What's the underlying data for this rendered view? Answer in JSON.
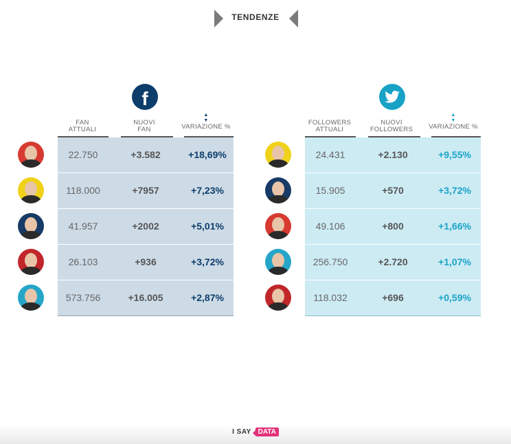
{
  "header": {
    "title": "TENDENZE"
  },
  "facebook": {
    "icon": "facebook-icon",
    "columns": [
      {
        "line1": "FAN",
        "line2": "ATTUALI"
      },
      {
        "line1": "NUOVI",
        "line2": "FAN"
      },
      {
        "line1": "VARIAZIONE %",
        "line2": ""
      }
    ],
    "rows": [
      {
        "avatar": "person-avatar",
        "bg": "#d73a30",
        "v1": "22.750",
        "v2": "+3.582",
        "v3": "+18,69%"
      },
      {
        "avatar": "person-avatar",
        "bg": "#f0d21a",
        "v1": "118.000",
        "v2": "+7957",
        "v3": "+7,23%"
      },
      {
        "avatar": "person-avatar",
        "bg": "#173a66",
        "v1": "41.957",
        "v2": "+2002",
        "v3": "+5,01%"
      },
      {
        "avatar": "person-avatar",
        "bg": "#c0262a",
        "v1": "26.103",
        "v2": "+936",
        "v3": "+3,72%"
      },
      {
        "avatar": "person-avatar",
        "bg": "#25a6c9",
        "v1": "573.756",
        "v2": "+16.005",
        "v3": "+2,87%"
      }
    ]
  },
  "twitter": {
    "icon": "twitter-icon",
    "columns": [
      {
        "line1": "FOLLOWERS",
        "line2": "ATTUALI"
      },
      {
        "line1": "NUOVI",
        "line2": "FOLLOWERS"
      },
      {
        "line1": "VARIAZIONE %",
        "line2": ""
      }
    ],
    "rows": [
      {
        "avatar": "person-avatar",
        "bg": "#f0d21a",
        "v1": "24.431",
        "v2": "+2.130",
        "v3": "+9,55%"
      },
      {
        "avatar": "person-avatar",
        "bg": "#173a66",
        "v1": "15.905",
        "v2": "+570",
        "v3": "+3,72%"
      },
      {
        "avatar": "person-avatar",
        "bg": "#d73a30",
        "v1": "49.106",
        "v2": "+800",
        "v3": "+1,66%"
      },
      {
        "avatar": "person-avatar",
        "bg": "#25a6c9",
        "v1": "256.750",
        "v2": "+2.720",
        "v3": "+1,07%"
      },
      {
        "avatar": "person-avatar",
        "bg": "#c0262a",
        "v1": "118.032",
        "v2": "+696",
        "v3": "+0,59%"
      }
    ]
  },
  "footer": {
    "brand_left": "I SAY",
    "brand_right": "DATA"
  },
  "colors": {
    "facebook": "#0d3d6b",
    "twitter": "#17a2c6",
    "brand": "#e2317a"
  }
}
